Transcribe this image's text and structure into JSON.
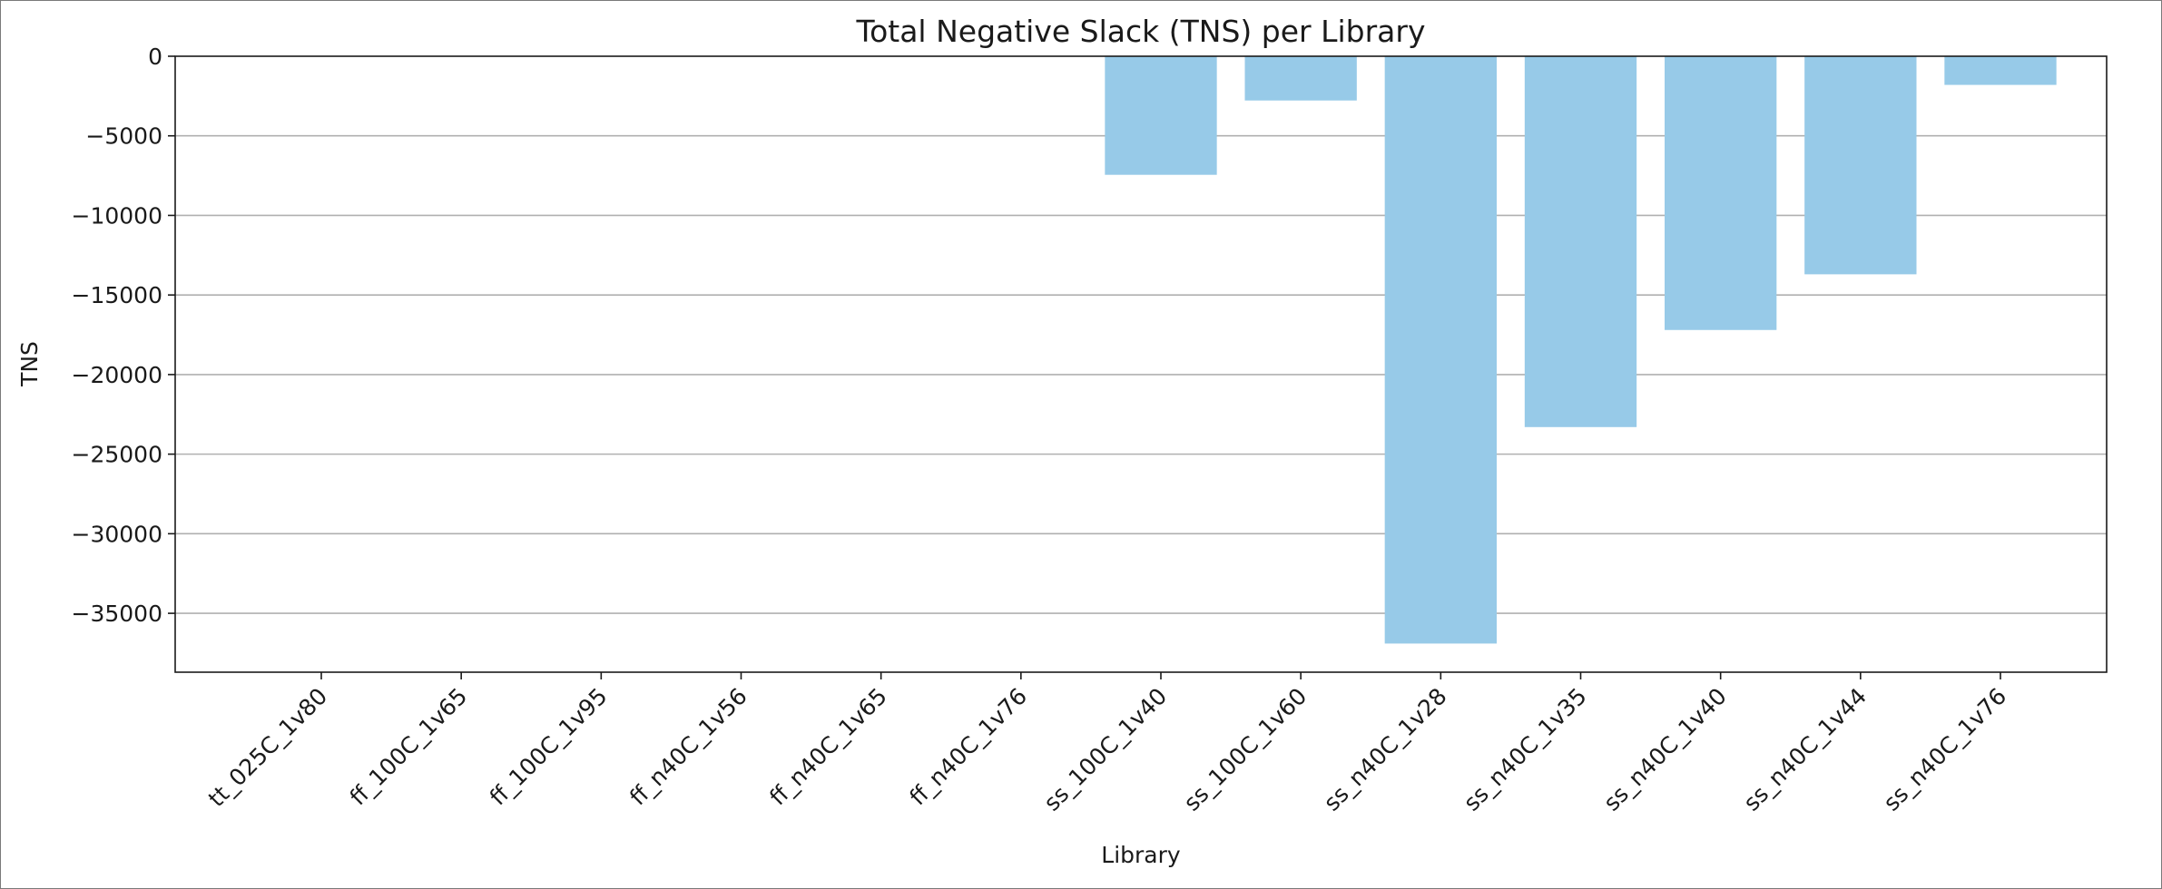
{
  "chart_data": {
    "type": "bar",
    "title": "Total Negative Slack (TNS) per Library",
    "xlabel": "Library",
    "ylabel": "TNS",
    "categories": [
      "tt_025C_1v80",
      "ff_100C_1v65",
      "ff_100C_1v95",
      "ff_n40C_1v56",
      "ff_n40C_1v65",
      "ff_n40C_1v76",
      "ss_100C_1v40",
      "ss_100C_1v60",
      "ss_n40C_1v28",
      "ss_n40C_1v35",
      "ss_n40C_1v40",
      "ss_n40C_1v44",
      "ss_n40C_1v76"
    ],
    "values": [
      0,
      0,
      0,
      0,
      0,
      0,
      -7450,
      -2780,
      -36900,
      -23300,
      -17200,
      -13700,
      -1800
    ],
    "ylim": [
      -38700,
      0
    ],
    "yticks": [
      0,
      -5000,
      -10000,
      -15000,
      -20000,
      -25000,
      -30000,
      -35000
    ],
    "grid": "y",
    "bar_color": "#97cae8"
  }
}
